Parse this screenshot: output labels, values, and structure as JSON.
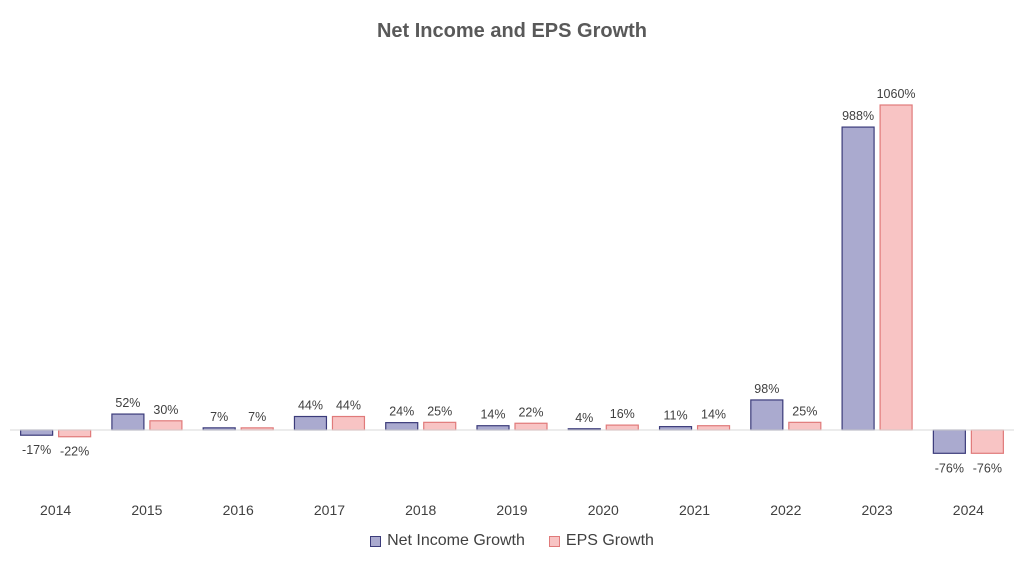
{
  "chart_data": {
    "type": "bar",
    "title": "Net Income and EPS Growth",
    "categories": [
      "2014",
      "2015",
      "2016",
      "2017",
      "2018",
      "2019",
      "2020",
      "2021",
      "2022",
      "2023",
      "2024"
    ],
    "series": [
      {
        "name": "Net Income Growth",
        "values": [
          -17,
          52,
          7,
          44,
          24,
          14,
          4,
          11,
          98,
          988,
          -76
        ],
        "labels": [
          "-17%",
          "52%",
          "7%",
          "44%",
          "24%",
          "14%",
          "4%",
          "11%",
          "98%",
          "988%",
          "-76%"
        ],
        "fill": "#aaaacf",
        "stroke": "#3b3b7a"
      },
      {
        "name": "EPS Growth",
        "values": [
          -22,
          30,
          7,
          44,
          25,
          22,
          16,
          14,
          25,
          1060,
          -76
        ],
        "labels": [
          "-22%",
          "30%",
          "7%",
          "44%",
          "25%",
          "22%",
          "16%",
          "14%",
          "25%",
          "1060%",
          "-76%"
        ],
        "fill": "#f8c4c4",
        "stroke": "#e07a7a"
      }
    ],
    "grid": false,
    "legend_position": "bottom"
  }
}
